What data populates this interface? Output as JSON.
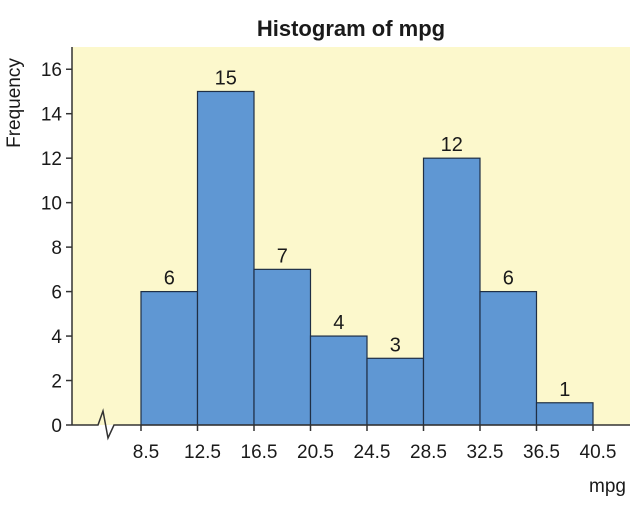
{
  "chart_data": {
    "type": "bar",
    "title": "Histogram of mpg",
    "xlabel": "mpg",
    "ylabel": "Frequency",
    "bin_edges": [
      8.5,
      12.5,
      16.5,
      20.5,
      24.5,
      28.5,
      32.5,
      36.5,
      40.5
    ],
    "x_tick_labels": [
      "8.5",
      "12.5",
      "16.5",
      "20.5",
      "24.5",
      "28.5",
      "32.5",
      "36.5",
      "40.5"
    ],
    "values": [
      6,
      15,
      7,
      4,
      3,
      12,
      6,
      1
    ],
    "value_labels": [
      "6",
      "15",
      "7",
      "4",
      "3",
      "12",
      "6",
      "1"
    ],
    "y_ticks": [
      0,
      2,
      4,
      6,
      8,
      10,
      12,
      14,
      16
    ],
    "y_tick_labels": [
      "0",
      "2",
      "4",
      "6",
      "8",
      "10",
      "12",
      "14",
      "16"
    ],
    "ylim": [
      0,
      17
    ],
    "grid": false,
    "axis_break": true,
    "colors": {
      "plot_background": "#fcf8cc",
      "bar_fill": "#5f97d3",
      "bar_stroke": "#1f2f45",
      "axis": "#333333"
    }
  }
}
